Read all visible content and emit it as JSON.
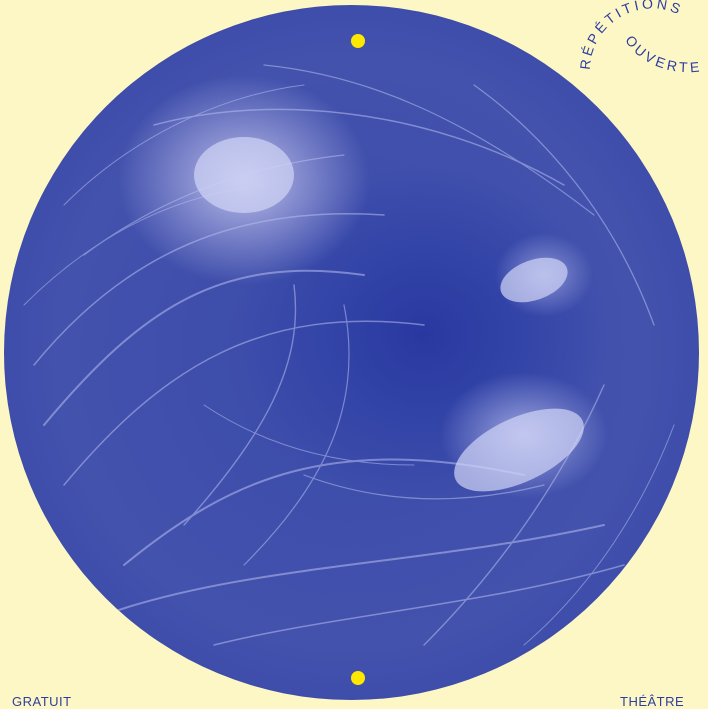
{
  "badge": {
    "line_top": "RÉPÉTITIONS",
    "line_bottom": "OUVERTES"
  },
  "footer": {
    "left_label": "GRATUIT",
    "right_label": "THÉÂTRE"
  },
  "colors": {
    "background": "#fdf7c6",
    "ink": "#2d3ea0",
    "photo_tint": "#3a4aa9",
    "marker": "#ffe800"
  },
  "photo": {
    "subject_icon": "bird-nest-photo"
  }
}
